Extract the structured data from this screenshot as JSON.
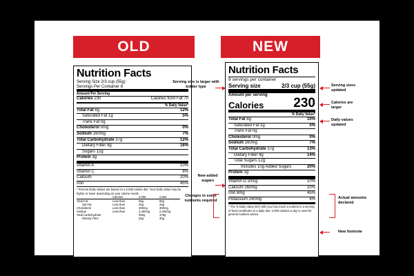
{
  "banners": {
    "old": "OLD",
    "new": "NEW"
  },
  "old_label": {
    "title": "Nutrition Facts",
    "serving_size": "Serving Size 2/3 cup (55g)",
    "servings_per_container": "Servings Per Container 8",
    "amount_per_serving": "Amount Per Serving",
    "calories": "Calories",
    "calories_value": "230",
    "calories_from_fat": "Calories from Fat 70",
    "dv_header": "% Daily Value*",
    "nutrients": [
      {
        "name": "Total Fat",
        "amount": "8g",
        "dv": "12%",
        "bold": true,
        "indent": 0
      },
      {
        "name": "Saturated Fat",
        "amount": "1g",
        "dv": "5%",
        "bold": false,
        "indent": 1
      },
      {
        "name": "Trans",
        "amount": "Fat 0g",
        "dv": "",
        "bold": false,
        "indent": 1,
        "italic": true
      },
      {
        "name": "Cholesterol",
        "amount": "0mg",
        "dv": "0%",
        "bold": true,
        "indent": 0
      },
      {
        "name": "Sodium",
        "amount": "160mg",
        "dv": "7%",
        "bold": true,
        "indent": 0
      },
      {
        "name": "Total Carbohydrate",
        "amount": "37g",
        "dv": "12%",
        "bold": true,
        "indent": 0
      },
      {
        "name": "Dietary Fiber",
        "amount": "4g",
        "dv": "16%",
        "bold": false,
        "indent": 1
      },
      {
        "name": "Sugars",
        "amount": "12g",
        "dv": "",
        "bold": false,
        "indent": 1
      },
      {
        "name": "Protein",
        "amount": "3g",
        "dv": "",
        "bold": true,
        "indent": 0
      }
    ],
    "vitamins": [
      {
        "name": "Vitamin A",
        "dv": "10%"
      },
      {
        "name": "Vitamin C",
        "dv": "8%"
      },
      {
        "name": "Calcium",
        "dv": "20%"
      },
      {
        "name": "Iron",
        "dv": "45%"
      }
    ],
    "footnote": "* Percent Daily Values are based on a 2,000 calorie diet. Your Daily Value may be higher or lower depending on your calorie needs.",
    "footer_table": {
      "header": [
        "",
        "Calories",
        "2,000",
        "2,500"
      ],
      "rows": [
        [
          "Total Fat",
          "Less than",
          "65g",
          "80g"
        ],
        [
          "Sat Fat",
          "Less than",
          "20g",
          "25g"
        ],
        [
          "Cholesterol",
          "Less than",
          "300mg",
          "300mg"
        ],
        [
          "Sodium",
          "Less than",
          "2,400mg",
          "2,400mg"
        ],
        [
          "Total Carbohydrate",
          "",
          "300g",
          "375g"
        ],
        [
          "Dietary Fiber",
          "",
          "25g",
          "30g"
        ]
      ]
    }
  },
  "new_label": {
    "title": "Nutrition Facts",
    "servings": "8 servings per container",
    "serving_size_label": "Serving size",
    "serving_size_value": "2/3 cup (55g)",
    "amount_per_serving": "Amount per serving",
    "calories": "Calories",
    "calories_value": "230",
    "dv_header": "% Daily Value*",
    "nutrients": [
      {
        "name": "Total Fat",
        "amount": "8g",
        "dv": "10%",
        "bold": true,
        "indent": 0
      },
      {
        "name": "Saturated Fat",
        "amount": "1g",
        "dv": "5%",
        "bold": false,
        "indent": 1
      },
      {
        "name": "Trans",
        "amount": "Fat 0g",
        "dv": "",
        "bold": false,
        "indent": 1,
        "italic": true
      },
      {
        "name": "Cholesterol",
        "amount": "0mg",
        "dv": "0%",
        "bold": true,
        "indent": 0
      },
      {
        "name": "Sodium",
        "amount": "160mg",
        "dv": "7%",
        "bold": true,
        "indent": 0
      },
      {
        "name": "Total Carbohydrate",
        "amount": "37g",
        "dv": "13%",
        "bold": true,
        "indent": 0
      },
      {
        "name": "Dietary Fiber",
        "amount": "4g",
        "dv": "14%",
        "bold": false,
        "indent": 1
      },
      {
        "name": "Total Sugars",
        "amount": "12g",
        "dv": "",
        "bold": false,
        "indent": 1
      },
      {
        "name": "Includes 10g Added Sugars",
        "amount": "",
        "dv": "20%",
        "bold": false,
        "indent": 2
      },
      {
        "name": "Protein",
        "amount": "3g",
        "dv": "",
        "bold": true,
        "indent": 0
      }
    ],
    "vitamins": [
      {
        "name": "Vitamin D 2mcg",
        "dv": "10%"
      },
      {
        "name": "Calcium 260mg",
        "dv": "20%"
      },
      {
        "name": "Iron 8mg",
        "dv": "45%"
      },
      {
        "name": "Potassium 240mg",
        "dv": "6%"
      }
    ],
    "footnote": "* The % Daily Value (DV) tells you how much a nutrient in a serving of food contributes to a daily diet. 2,000 calories a day is used for general nutrition advice."
  },
  "annotations": {
    "serving_size": "Serving size is larger with bolder type",
    "serving_sizes_updated": "Serving sizes updated",
    "calories_larger": "Calories are larger",
    "daily_values_updated": "Daily values updated",
    "new_added_sugars": "New added sugars",
    "changes_nutrients": "Changes in some nutrients required",
    "actual_amounts": "Actual amounts declared",
    "new_footnote": "New footnote"
  },
  "colors": {
    "accent": "#d71f2a",
    "background": "#000000",
    "panel": "#ffffff"
  }
}
